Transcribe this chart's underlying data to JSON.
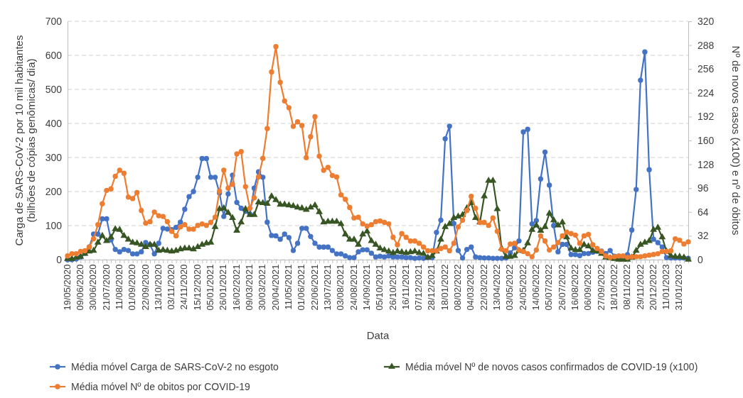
{
  "chart_data": {
    "type": "line",
    "xlabel": "Data",
    "ylabel": "Carga de SARS-CoV-2 por 10 mil habitantes\n(bilhões de cópias genômicas/ dia)",
    "y2label": "Nº de novos casos (x100) e nº de óbitos",
    "categories": [
      "19/05/2020",
      null,
      null,
      "09/06/2020",
      null,
      null,
      "30/06/2020",
      null,
      null,
      "21/07/2020",
      null,
      null,
      "11/08/2020",
      null,
      null,
      "01/09/2020",
      null,
      null,
      "22/09/2020",
      null,
      null,
      "13/10/2020",
      null,
      null,
      "03/11/2020",
      null,
      null,
      "24/11/2020",
      null,
      null,
      "15/12/2020",
      null,
      null,
      "05/01/2021",
      null,
      null,
      "26/01/2021",
      null,
      null,
      "16/02/2021",
      null,
      null,
      "09/03/2021",
      null,
      null,
      "30/03/2021",
      null,
      null,
      "20/04/2021",
      null,
      null,
      "11/05/2021",
      null,
      null,
      "01/06/2021",
      null,
      null,
      "22/06/2021",
      null,
      null,
      "13/07/2021",
      null,
      null,
      "03/08/2021",
      null,
      null,
      "24/08/2021",
      null,
      null,
      "14/09/2021",
      null,
      null,
      "05/10/2021",
      null,
      null,
      "26/10/2021",
      null,
      null,
      "16/11/2021",
      null,
      null,
      "07/12/2021",
      null,
      null,
      "28/12/2021",
      null,
      null,
      "18/01/2022",
      null,
      null,
      "08/02/2022",
      null,
      null,
      "04/03/2022",
      null,
      null,
      "22/03/2022",
      null,
      null,
      "13/04/2022",
      null,
      null,
      "03/05/2022",
      null,
      null,
      "24/05/2022",
      null,
      null,
      "14/06/2022",
      null,
      null,
      "05/07/2022",
      null,
      null,
      "26/07/2022",
      null,
      null,
      "16/08/2022",
      null,
      null,
      "06/09/2022",
      null,
      null,
      "27/09/2022",
      null,
      null,
      "18/10/2022",
      null,
      null,
      "08/11/2022",
      null,
      null,
      "29/11/2022",
      null,
      null,
      "20/12/2022",
      null,
      null,
      "11/01/2023",
      null,
      null,
      "31/01/2023",
      null,
      null
    ],
    "ylim": [
      0,
      700
    ],
    "yticks": [
      0,
      100,
      200,
      300,
      400,
      500,
      600,
      700
    ],
    "y2lim": [
      0,
      320
    ],
    "y2ticks": [
      0,
      32,
      64,
      96,
      128,
      160,
      192,
      224,
      256,
      288,
      320
    ],
    "grid": "y",
    "legend": "bottom",
    "line_style": "solid",
    "series": [
      {
        "name": "Média móvel Carga de SARS-CoV-2 no esgoto",
        "color": "#4472c4",
        "marker": "circle",
        "values": [
          0,
          0,
          2,
          8,
          19,
          37,
          75,
          75,
          120,
          120,
          58,
          30,
          23,
          30,
          27,
          17,
          17,
          23,
          50,
          44,
          17,
          48,
          92,
          90,
          88,
          95,
          110,
          148,
          185,
          200,
          242,
          297,
          297,
          242,
          242,
          196,
          127,
          193,
          248,
          168,
          151,
          142,
          134,
          210,
          258,
          242,
          110,
          71,
          70,
          60,
          75,
          65,
          27,
          48,
          92,
          92,
          68,
          48,
          37,
          37,
          37,
          27,
          17,
          17,
          11,
          6,
          6,
          23,
          29,
          29,
          19,
          8,
          10,
          8,
          11,
          8,
          8,
          8,
          6,
          6,
          4,
          5,
          4,
          6,
          6,
          80,
          116,
          355,
          392,
          106,
          27,
          5,
          30,
          37,
          8,
          6,
          5,
          5,
          4,
          4,
          4,
          5,
          20,
          35,
          55,
          375,
          383,
          105,
          115,
          237,
          316,
          219,
          100,
          23,
          45,
          45,
          15,
          15,
          12,
          18,
          18,
          22,
          25,
          25,
          18,
          27,
          10,
          5,
          5,
          15,
          87,
          206,
          527,
          610,
          264,
          60,
          50,
          37,
          6,
          5,
          5,
          5,
          5,
          4
        ]
      },
      {
        "name": "Média móvel Nº de novos casos confirmados de COVID-19 (x100)",
        "color": "#375623",
        "marker": "triangle",
        "axis": "y2",
        "values": [
          1,
          1,
          3,
          4,
          8,
          11,
          12,
          23,
          32,
          25,
          30,
          41,
          40,
          32,
          27,
          23,
          22,
          20,
          17,
          20,
          20,
          12,
          13,
          12,
          11,
          12,
          14,
          15,
          15,
          14,
          17,
          20,
          22,
          23,
          44,
          68,
          69,
          63,
          56,
          39,
          50,
          68,
          60,
          60,
          77,
          76,
          75,
          85,
          80,
          74,
          74,
          73,
          72,
          70,
          69,
          67,
          70,
          73,
          64,
          50,
          51,
          51,
          51,
          48,
          34,
          27,
          27,
          20,
          34,
          38,
          25,
          20,
          15,
          13,
          11,
          9,
          11,
          10,
          9,
          10,
          11,
          9,
          8,
          3,
          5,
          11,
          27,
          44,
          48,
          56,
          58,
          60,
          69,
          76,
          56,
          50,
          85,
          106,
          106,
          68,
          15,
          4,
          4,
          5,
          12,
          12,
          22,
          40,
          46,
          39,
          44,
          62,
          53,
          46,
          50,
          30,
          15,
          13,
          13,
          20,
          18,
          12,
          11,
          8,
          3,
          2,
          1,
          0,
          0,
          0,
          3,
          12,
          20,
          23,
          25,
          40,
          43,
          30,
          11,
          5,
          4,
          4,
          3,
          0
        ]
      },
      {
        "name": "Média móvel Nº de obitos por COVID-19",
        "color": "#ed7d31",
        "marker": "circle",
        "axis": "y2",
        "values": [
          5,
          8,
          8,
          11,
          12,
          17,
          28,
          47,
          75,
          93,
          95,
          112,
          120,
          116,
          84,
          82,
          90,
          66,
          49,
          51,
          64,
          59,
          58,
          51,
          38,
          32,
          44,
          47,
          41,
          41,
          46,
          48,
          46,
          50,
          57,
          92,
          120,
          96,
          101,
          142,
          145,
          98,
          69,
          83,
          111,
          136,
          176,
          252,
          286,
          238,
          213,
          204,
          179,
          185,
          180,
          137,
          165,
          192,
          139,
          120,
          124,
          113,
          111,
          87,
          81,
          70,
          56,
          57,
          48,
          45,
          47,
          51,
          52,
          50,
          48,
          30,
          20,
          35,
          30,
          25,
          25,
          22,
          17,
          12,
          12,
          12,
          15,
          17,
          12,
          22,
          44,
          53,
          66,
          85,
          69,
          50,
          50,
          46,
          56,
          38,
          14,
          12,
          21,
          22,
          13,
          11,
          8,
          4,
          13,
          32,
          25,
          13,
          17,
          23,
          32,
          37,
          35,
          33,
          22,
          32,
          34,
          20,
          15,
          11,
          5,
          3,
          4,
          5,
          5,
          3,
          4,
          4,
          4,
          5,
          6,
          7,
          8,
          11,
          11,
          12,
          28,
          26,
          21,
          24
        ]
      }
    ]
  }
}
